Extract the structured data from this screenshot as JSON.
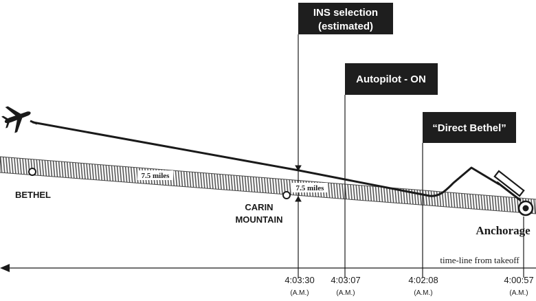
{
  "callouts": {
    "ins_selection_line1": "INS selection",
    "ins_selection_line2": "(estimated)",
    "autopilot": "Autopilot - ON",
    "direct_bethel": "“Direct Bethel”"
  },
  "places": {
    "bethel": "BETHEL",
    "carin_line1": "CARIN",
    "carin_line2": "MOUNTAIN",
    "anchorage": "Anchorage"
  },
  "distances": {
    "corridor_width": "7.5 miles",
    "deviation": "7.5 miles"
  },
  "timeline": {
    "caption": "time-line from takeoff",
    "times": [
      {
        "time": "4:03:30",
        "period": "(A.M.)"
      },
      {
        "time": "4:03:07",
        "period": "(A.M.)"
      },
      {
        "time": "4:02:08",
        "period": "(A.M.)"
      },
      {
        "time": "4:00:57",
        "period": "(A.M.)"
      }
    ]
  },
  "colors": {
    "ink": "#1a1a1a",
    "callout_bg": "#1e1e1e",
    "callout_text": "#ffffff",
    "corridor_hatch": "#555555"
  }
}
